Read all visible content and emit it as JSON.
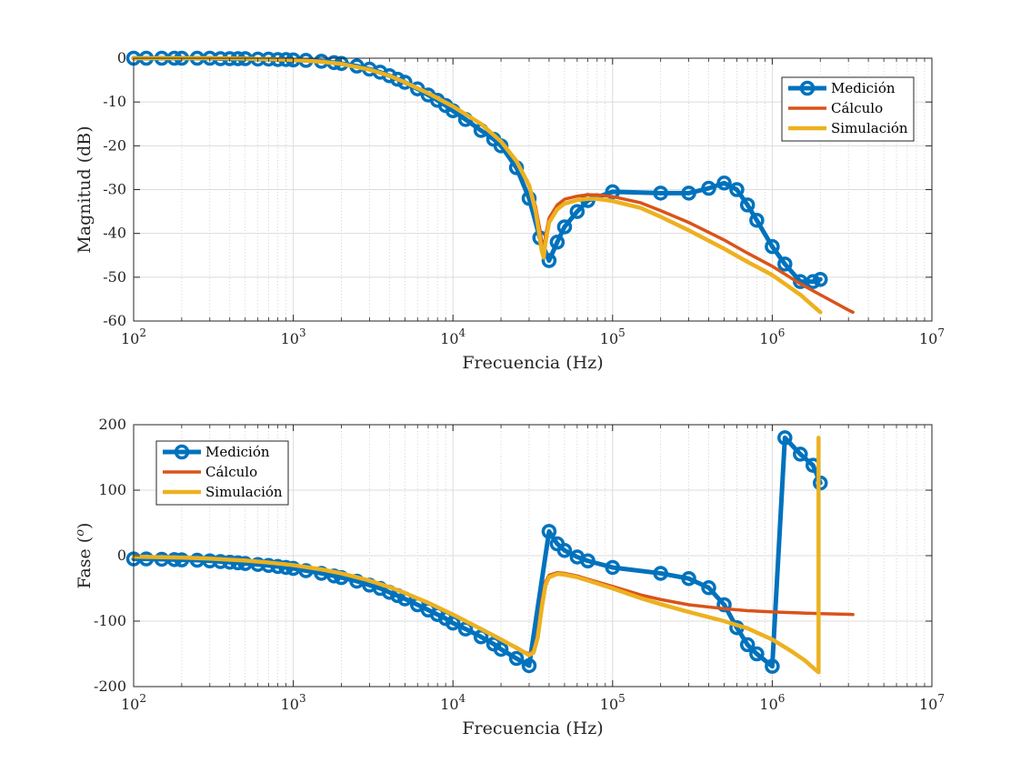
{
  "chart_data": [
    {
      "type": "line",
      "xscale": "log",
      "xlim": [
        100,
        10000000
      ],
      "ylim": [
        -60,
        0
      ],
      "xlabel": "Frecuencia (Hz)",
      "ylabel": "Magnitud (dB)",
      "grid": true,
      "legend_position": "top-right",
      "x_ticks": [
        100,
        1000,
        10000,
        100000,
        1000000,
        10000000
      ],
      "x_tick_labels": [
        [
          "10",
          "2"
        ],
        [
          "10",
          "3"
        ],
        [
          "10",
          "4"
        ],
        [
          "10",
          "5"
        ],
        [
          "10",
          "6"
        ],
        [
          "10",
          "7"
        ]
      ],
      "y_ticks": [
        0,
        -10,
        -20,
        -30,
        -40,
        -50,
        -60
      ],
      "y_tick_labels": [
        "0",
        "-10",
        "-20",
        "-30",
        "-40",
        "-50",
        "-60"
      ],
      "series": [
        {
          "name": "Medición",
          "color": "#0072BD",
          "style": "line-markers",
          "x": [
            100,
            120,
            150,
            180,
            200,
            250,
            300,
            350,
            400,
            450,
            500,
            600,
            700,
            800,
            900,
            1000,
            1200,
            1500,
            1800,
            2000,
            2500,
            3000,
            3500,
            4000,
            4500,
            5000,
            6000,
            7000,
            8000,
            9000,
            10000,
            12000,
            15000,
            18000,
            20000,
            25000,
            30000,
            35000,
            40000,
            45000,
            50000,
            60000,
            70000,
            100000,
            200000,
            300000,
            400000,
            500000,
            600000,
            700000,
            800000,
            1000000,
            1200000,
            1500000,
            1800000,
            2000000
          ],
          "y": [
            0,
            0,
            0,
            0,
            0,
            0,
            0,
            -0.1,
            -0.1,
            -0.1,
            -0.1,
            -0.2,
            -0.2,
            -0.3,
            -0.3,
            -0.4,
            -0.5,
            -0.7,
            -1,
            -1.2,
            -1.8,
            -2.5,
            -3.2,
            -4,
            -4.8,
            -5.5,
            -7,
            -8.4,
            -9.6,
            -10.8,
            -12,
            -14,
            -16.5,
            -18.5,
            -20,
            -25,
            -32,
            -41,
            -46.2,
            -42,
            -38.5,
            -35,
            -32.5,
            -30.5,
            -30.8,
            -30.8,
            -29.7,
            -28.5,
            -30,
            -33.5,
            -37,
            -43,
            -47,
            -51,
            -51,
            -50.5
          ]
        },
        {
          "name": "Cálculo",
          "color": "#D95319",
          "style": "line",
          "x": [
            100,
            200,
            300,
            500,
            700,
            1000,
            1500,
            2000,
            3000,
            4000,
            5000,
            7000,
            10000,
            15000,
            20000,
            25000,
            30000,
            33000,
            35000,
            36000,
            37000,
            38000,
            40000,
            45000,
            50000,
            60000,
            70000,
            80000,
            100000,
            150000,
            200000,
            300000,
            500000,
            700000,
            1000000,
            1500000,
            2000000,
            3000000,
            3200000
          ],
          "y": [
            0,
            0,
            0,
            -0.1,
            -0.2,
            -0.4,
            -0.8,
            -1.3,
            -2.6,
            -4,
            -5.5,
            -8,
            -11,
            -15,
            -19,
            -23.5,
            -29,
            -34,
            -39,
            -42,
            -44,
            -40.5,
            -36.5,
            -33.5,
            -32.2,
            -31.5,
            -31.2,
            -31.2,
            -31.6,
            -33,
            -34.8,
            -37.5,
            -41.5,
            -44.5,
            -47.5,
            -51.5,
            -54,
            -57.5,
            -58
          ]
        },
        {
          "name": "Simulación",
          "color": "#EDB120",
          "style": "line",
          "x": [
            100,
            200,
            300,
            500,
            700,
            1000,
            1500,
            2000,
            3000,
            4000,
            5000,
            7000,
            10000,
            15000,
            20000,
            25000,
            30000,
            33000,
            35000,
            36000,
            37000,
            38000,
            40000,
            45000,
            50000,
            60000,
            70000,
            80000,
            100000,
            150000,
            200000,
            300000,
            500000,
            700000,
            1000000,
            1500000,
            2000000
          ],
          "y": [
            0,
            0,
            0,
            -0.1,
            -0.2,
            -0.4,
            -0.8,
            -1.3,
            -2.6,
            -4,
            -5.5,
            -8,
            -11,
            -15,
            -19,
            -23.5,
            -29,
            -35,
            -41,
            -44,
            -45.5,
            -42,
            -37.5,
            -34.5,
            -33.2,
            -32.4,
            -32.1,
            -32.1,
            -32.6,
            -34.2,
            -36.2,
            -39.3,
            -43.5,
            -46.5,
            -49.5,
            -54,
            -58
          ]
        }
      ]
    },
    {
      "type": "line",
      "xscale": "log",
      "xlim": [
        100,
        10000000
      ],
      "ylim": [
        -200,
        200
      ],
      "xlabel": "Frecuencia (Hz)",
      "ylabel": "Fase (°)",
      "ylabel_text": "Fase (",
      "ylabel_sup": "o",
      "ylabel_end": ")",
      "grid": true,
      "legend_position": "top-left",
      "x_ticks": [
        100,
        1000,
        10000,
        100000,
        1000000,
        10000000
      ],
      "x_tick_labels": [
        [
          "10",
          "2"
        ],
        [
          "10",
          "3"
        ],
        [
          "10",
          "4"
        ],
        [
          "10",
          "5"
        ],
        [
          "10",
          "6"
        ],
        [
          "10",
          "7"
        ]
      ],
      "y_ticks": [
        200,
        100,
        0,
        -100,
        -200
      ],
      "y_tick_labels": [
        "200",
        "100",
        "0",
        "-100",
        "-200"
      ],
      "series": [
        {
          "name": "Medición",
          "color": "#0072BD",
          "style": "line-markers",
          "x": [
            100,
            120,
            150,
            180,
            200,
            250,
            300,
            350,
            400,
            450,
            500,
            600,
            700,
            800,
            900,
            1000,
            1200,
            1500,
            1800,
            2000,
            2500,
            3000,
            3500,
            4000,
            4500,
            5000,
            6000,
            7000,
            8000,
            9000,
            10000,
            12000,
            15000,
            18000,
            20000,
            25000,
            30000,
            40000,
            45000,
            50000,
            60000,
            70000,
            100000,
            200000,
            300000,
            400000,
            500000,
            600000,
            700000,
            800000,
            1000000,
            1200000,
            1500000,
            1800000,
            2000000
          ],
          "y": [
            -5,
            -5,
            -5.5,
            -6,
            -6.5,
            -7,
            -8,
            -9,
            -10,
            -11,
            -12,
            -13.5,
            -15,
            -16.5,
            -18,
            -19.5,
            -23,
            -27,
            -31,
            -33.5,
            -39,
            -45,
            -50,
            -56,
            -61,
            -66,
            -75,
            -83,
            -90,
            -96,
            -103,
            -112,
            -124,
            -135,
            -143,
            -157,
            -168,
            37,
            18,
            8,
            -2,
            -8,
            -18,
            -27,
            -35,
            -49,
            -75,
            -110,
            -136,
            -150,
            -169,
            180,
            155,
            138,
            111
          ]
        },
        {
          "name": "Cálculo",
          "color": "#D95319",
          "style": "line",
          "x": [
            100,
            200,
            300,
            500,
            700,
            1000,
            1500,
            2000,
            3000,
            4000,
            5000,
            7000,
            10000,
            15000,
            20000,
            25000,
            28000,
            30000,
            32000,
            34000,
            36000,
            38000,
            40000,
            45000,
            50000,
            60000,
            70000,
            100000,
            150000,
            200000,
            300000,
            500000,
            700000,
            1000000,
            1500000,
            2000000,
            3000000,
            3200000
          ],
          "y": [
            -1.5,
            -3,
            -4.5,
            -7.5,
            -10.5,
            -14.5,
            -21,
            -27,
            -38,
            -48,
            -57,
            -72,
            -90,
            -112,
            -128,
            -140,
            -147,
            -150,
            -145,
            -120,
            -70,
            -40,
            -30,
            -26,
            -27,
            -31,
            -36,
            -47,
            -60,
            -67,
            -75,
            -81,
            -84,
            -86,
            -87.5,
            -88.5,
            -89.5,
            -90
          ]
        },
        {
          "name": "Simulación",
          "color": "#EDB120",
          "style": "line",
          "x": [
            100,
            200,
            300,
            500,
            700,
            1000,
            1500,
            2000,
            3000,
            4000,
            5000,
            7000,
            10000,
            15000,
            20000,
            25000,
            28000,
            30000,
            32000,
            34000,
            36000,
            38000,
            40000,
            45000,
            50000,
            60000,
            70000,
            100000,
            150000,
            200000,
            300000,
            500000,
            700000,
            1000000,
            1300000,
            1600000,
            1900000,
            1950000,
            1950000
          ],
          "y": [
            -1.5,
            -3,
            -4.5,
            -7.5,
            -10.5,
            -14.5,
            -21,
            -27,
            -38,
            -48,
            -57,
            -72,
            -90,
            -112,
            -128,
            -141,
            -148,
            -152,
            -148,
            -125,
            -80,
            -45,
            -33,
            -28,
            -29,
            -33,
            -38,
            -50,
            -65,
            -74,
            -86,
            -100,
            -111,
            -128,
            -145,
            -160,
            -176,
            -178,
            180
          ]
        }
      ]
    }
  ]
}
